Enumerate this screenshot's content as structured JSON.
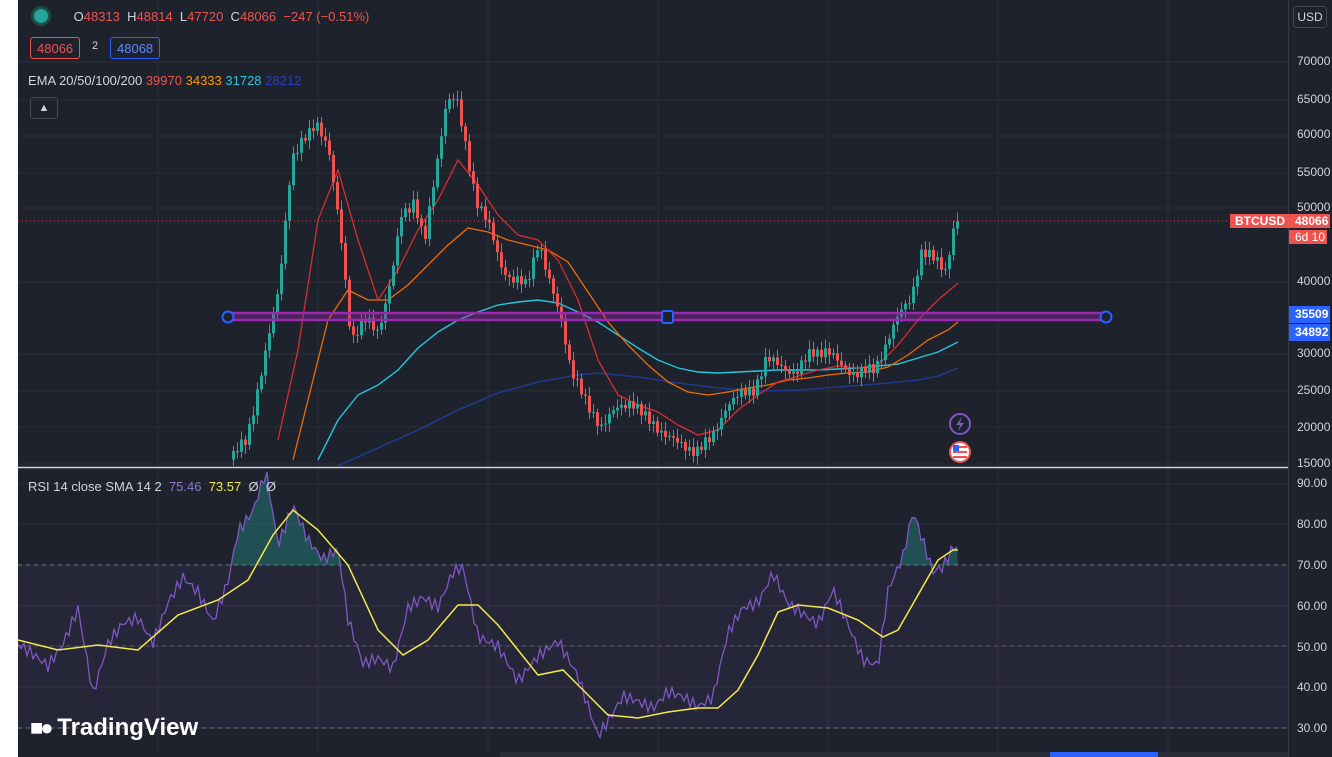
{
  "header": {
    "open_label": "O",
    "open": "48313",
    "high_label": "H",
    "high": "48814",
    "low_label": "L",
    "low": "47720",
    "close_label": "C",
    "close": "48066",
    "change": "−247 (−0.51%)",
    "sell_price": "48066",
    "spread": "2",
    "buy_price": "48068"
  },
  "ema": {
    "label": "EMA 20/50/100/200",
    "v20": "39970",
    "v50": "34333",
    "v100": "31728",
    "v200": "28212",
    "colors": {
      "ema20": "#d32f2f",
      "ema50": "#ef6c00",
      "ema100": "#26c6da",
      "ema200": "#1e3a8a"
    }
  },
  "rsi": {
    "label": "RSI 14 close SMA 14 2",
    "value": "75.46",
    "sma": "73.57",
    "extra1": "Ø",
    "extra2": "Ø",
    "colors": {
      "rsi": "#7e57c2",
      "sma": "#f5e84a"
    }
  },
  "price_axis": {
    "currency": "USD",
    "labels": [
      "70000",
      "65000",
      "60000",
      "55000",
      "50000",
      "40000",
      "30000",
      "25000",
      "20000",
      "15000"
    ],
    "symbol_tag": "BTCUSD",
    "last_price": "48066",
    "countdown": "6d 10",
    "level_high": "35509",
    "level_low": "34892"
  },
  "rsi_axis": {
    "labels": [
      "90.00",
      "80.00",
      "70.00",
      "60.00",
      "50.00",
      "40.00",
      "30.00"
    ]
  },
  "brand": {
    "logo_text": "TradingView"
  },
  "colors": {
    "up": "#26a69a",
    "down": "#ef5350",
    "level_line": "#9c27b0",
    "handle": "#2962ff",
    "background": "#1e222d"
  }
}
